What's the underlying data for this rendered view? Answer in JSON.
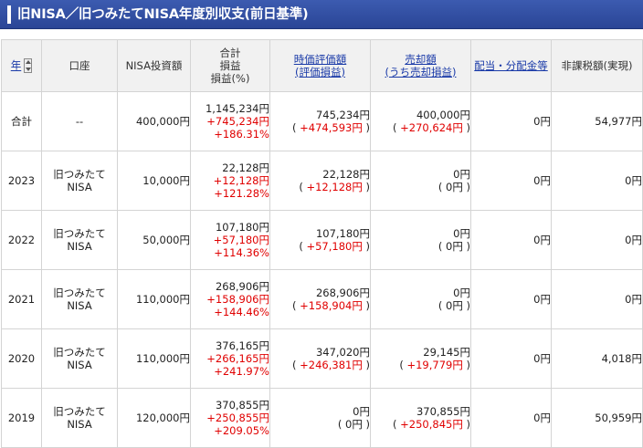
{
  "header": {
    "title": "旧NISA／旧つみたてNISA年度別収支(前日基準)"
  },
  "columns": {
    "year": "年",
    "account": "口座",
    "investment": "NISA投資額",
    "total_pl": [
      "合計",
      "損益",
      "損益(%)"
    ],
    "market_value": [
      "時価評価額",
      "(評価損益)"
    ],
    "sold": [
      "売却額",
      "(うち売却損益)"
    ],
    "dividend": "配当・分配金等",
    "tax_free": "非課税額(実現)"
  },
  "rows": [
    {
      "year": "合計",
      "account": [
        "--"
      ],
      "investment": "400,000円",
      "total": "1,145,234円",
      "pl": "+745,234円",
      "pct": "+186.31%",
      "mv": "745,234円",
      "mv_pl": "( +474,593円 )",
      "sold": "400,000円",
      "sold_pl": "( +270,624円 )",
      "dividend": "0円",
      "tax_free": "54,977円"
    },
    {
      "year": "2023",
      "account": [
        "旧つみたて",
        "NISA"
      ],
      "investment": "10,000円",
      "total": "22,128円",
      "pl": "+12,128円",
      "pct": "+121.28%",
      "mv": "22,128円",
      "mv_pl": "( +12,128円 )",
      "sold": "0円",
      "sold_pl": "( 0円 )",
      "dividend": "0円",
      "tax_free": "0円"
    },
    {
      "year": "2022",
      "account": [
        "旧つみたて",
        "NISA"
      ],
      "investment": "50,000円",
      "total": "107,180円",
      "pl": "+57,180円",
      "pct": "+114.36%",
      "mv": "107,180円",
      "mv_pl": "( +57,180円 )",
      "sold": "0円",
      "sold_pl": "( 0円 )",
      "dividend": "0円",
      "tax_free": "0円"
    },
    {
      "year": "2021",
      "account": [
        "旧つみたて",
        "NISA"
      ],
      "investment": "110,000円",
      "total": "268,906円",
      "pl": "+158,906円",
      "pct": "+144.46%",
      "mv": "268,906円",
      "mv_pl": "( +158,904円 )",
      "sold": "0円",
      "sold_pl": "( 0円 )",
      "dividend": "0円",
      "tax_free": "0円"
    },
    {
      "year": "2020",
      "account": [
        "旧つみたて",
        "NISA"
      ],
      "investment": "110,000円",
      "total": "376,165円",
      "pl": "+266,165円",
      "pct": "+241.97%",
      "mv": "347,020円",
      "mv_pl": "( +246,381円 )",
      "sold": "29,145円",
      "sold_pl": "( +19,779円 )",
      "dividend": "0円",
      "tax_free": "4,018円"
    },
    {
      "year": "2019",
      "account": [
        "旧つみたて",
        "NISA"
      ],
      "investment": "120,000円",
      "total": "370,855円",
      "pl": "+250,855円",
      "pct": "+209.05%",
      "mv": "0円",
      "mv_pl": "( 0円 )",
      "sold": "370,855円",
      "sold_pl": "( +250,845円 )",
      "dividend": "0円",
      "tax_free": "50,959円"
    }
  ]
}
